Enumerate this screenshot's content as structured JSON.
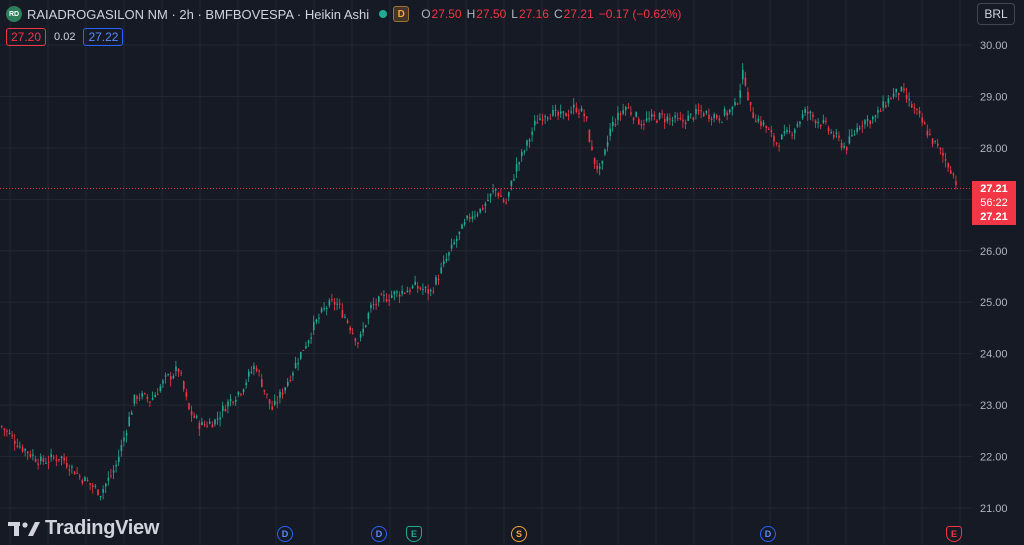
{
  "header": {
    "logo_text": "RD",
    "title": "RAIADROGASILON NM · 2h · BMFBOVESPA · Heikin Ashi",
    "badge": "D",
    "ohlc": [
      {
        "k": "O",
        "v": "27.50"
      },
      {
        "k": "H",
        "v": "27.50"
      },
      {
        "k": "L",
        "v": "27.16"
      },
      {
        "k": "C",
        "v": "27.21"
      },
      {
        "k": "",
        "v": "−0.17 (−0.62%)"
      }
    ]
  },
  "trade": {
    "sell": "27.20",
    "spread": "0.02",
    "buy": "27.22"
  },
  "currency": "BRL",
  "price_tag": {
    "price": "27.21",
    "timer": "56:22",
    "price2": "27.21"
  },
  "watermark": "TradingView",
  "events": [
    {
      "label": "D",
      "type": "d"
    },
    {
      "label": "D",
      "type": "d"
    },
    {
      "label": "E",
      "type": "e"
    },
    {
      "label": "S",
      "type": "s"
    },
    {
      "label": "D",
      "type": "d"
    },
    {
      "label": "E",
      "type": "e2"
    }
  ],
  "colors": {
    "up": "#22ab94",
    "down": "#f23645",
    "bg": "#161a25",
    "grid": "#232632"
  },
  "chart_data": {
    "type": "candlestick",
    "style": "Heikin Ashi",
    "ylim": [
      20.8,
      30.3
    ],
    "y_ticks": [
      "30.00",
      "29.00",
      "28.00",
      "27.00",
      "26.00",
      "25.00",
      "24.00",
      "23.00",
      "22.00",
      "21.00"
    ],
    "last_price": 27.21,
    "grid": true,
    "path_close": [
      [
        0,
        22.6
      ],
      [
        20,
        22.2
      ],
      [
        40,
        21.9
      ],
      [
        60,
        22.0
      ],
      [
        80,
        21.6
      ],
      [
        100,
        21.3
      ],
      [
        115,
        21.8
      ],
      [
        125,
        22.5
      ],
      [
        135,
        23.2
      ],
      [
        150,
        23.1
      ],
      [
        165,
        23.5
      ],
      [
        178,
        23.7
      ],
      [
        188,
        22.9
      ],
      [
        200,
        22.6
      ],
      [
        215,
        22.7
      ],
      [
        225,
        23.0
      ],
      [
        240,
        23.3
      ],
      [
        255,
        23.8
      ],
      [
        265,
        23.2
      ],
      [
        272,
        22.9
      ],
      [
        285,
        23.4
      ],
      [
        300,
        24.0
      ],
      [
        315,
        24.6
      ],
      [
        325,
        24.9
      ],
      [
        335,
        25.0
      ],
      [
        345,
        24.7
      ],
      [
        358,
        24.2
      ],
      [
        370,
        24.9
      ],
      [
        385,
        25.1
      ],
      [
        400,
        25.2
      ],
      [
        415,
        25.3
      ],
      [
        430,
        25.2
      ],
      [
        440,
        25.6
      ],
      [
        455,
        26.2
      ],
      [
        470,
        26.7
      ],
      [
        480,
        26.8
      ],
      [
        495,
        27.2
      ],
      [
        505,
        26.9
      ],
      [
        515,
        27.6
      ],
      [
        525,
        28.0
      ],
      [
        535,
        28.5
      ],
      [
        545,
        28.7
      ],
      [
        560,
        28.6
      ],
      [
        575,
        28.8
      ],
      [
        585,
        28.6
      ],
      [
        592,
        27.8
      ],
      [
        600,
        27.5
      ],
      [
        610,
        28.4
      ],
      [
        625,
        28.8
      ],
      [
        640,
        28.5
      ],
      [
        660,
        28.6
      ],
      [
        680,
        28.5
      ],
      [
        700,
        28.7
      ],
      [
        720,
        28.6
      ],
      [
        735,
        28.8
      ],
      [
        743,
        29.5
      ],
      [
        750,
        28.7
      ],
      [
        765,
        28.4
      ],
      [
        775,
        28.1
      ],
      [
        790,
        28.3
      ],
      [
        805,
        28.7
      ],
      [
        820,
        28.5
      ],
      [
        835,
        28.2
      ],
      [
        845,
        28.0
      ],
      [
        860,
        28.5
      ],
      [
        875,
        28.6
      ],
      [
        890,
        29.0
      ],
      [
        900,
        29.1
      ],
      [
        915,
        28.7
      ],
      [
        930,
        28.2
      ],
      [
        940,
        27.9
      ],
      [
        950,
        27.6
      ],
      [
        958,
        27.2
      ]
    ]
  }
}
